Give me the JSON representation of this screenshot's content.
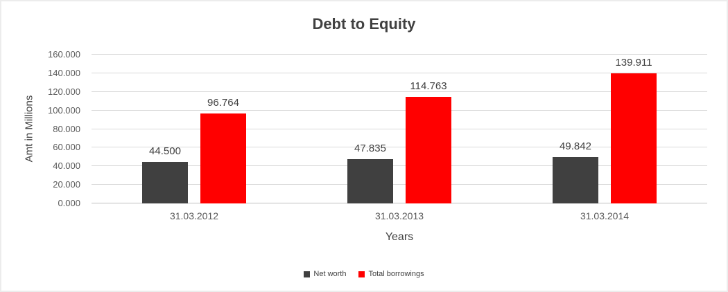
{
  "chart_data": {
    "type": "bar",
    "title": "Debt to Equity",
    "xlabel": "Years",
    "ylabel": "Amt in Millions",
    "categories": [
      "31.03.2012",
      "31.03.2013",
      "31.03.2014"
    ],
    "series": [
      {
        "name": "Net worth",
        "color": "#404040",
        "values": [
          44.5,
          47.835,
          49.842
        ],
        "labels": [
          "44.500",
          "47.835",
          "49.842"
        ]
      },
      {
        "name": "Total borrowings",
        "color": "#ff0000",
        "values": [
          96.764,
          114.763,
          139.911
        ],
        "labels": [
          "96.764",
          "114.763",
          "139.911"
        ]
      }
    ],
    "ylim": [
      0,
      160
    ],
    "ytick_step": 20,
    "ytick_labels": [
      "0.000",
      "20.000",
      "40.000",
      "60.000",
      "80.000",
      "100.000",
      "120.000",
      "140.000",
      "160.000"
    ],
    "grid": true,
    "legend_position": "bottom"
  }
}
